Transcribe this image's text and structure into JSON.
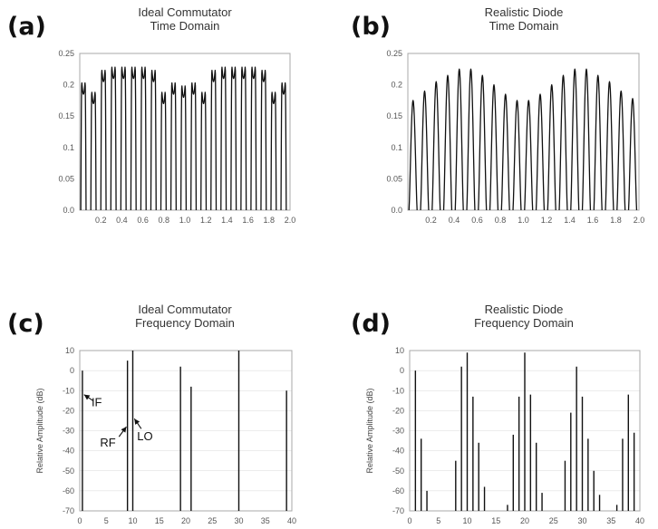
{
  "chart_data": [
    {
      "id": "a",
      "panel_label": "(a)",
      "type": "line",
      "title_lines": [
        "Ideal Commutator",
        "Time Domain"
      ],
      "xlim": [
        0,
        2.0
      ],
      "ylim": [
        0,
        0.25
      ],
      "x_ticks": [
        0.2,
        0.4,
        0.6,
        0.8,
        1.0,
        1.2,
        1.4,
        1.6,
        1.8,
        2.0
      ],
      "x_tick_labels": [
        "0.2",
        "0.4",
        "0.6",
        "0.8",
        "1.0",
        "1.2",
        "1.4",
        "1.6",
        "1.8",
        "2.0"
      ],
      "y_ticks": [
        0,
        0.05,
        0.1,
        0.15,
        0.2,
        0.25
      ],
      "y_tick_labels": [
        "0.0",
        "0.05",
        "0.1",
        "0.15",
        "0.2",
        "0.25"
      ],
      "ylabel": "",
      "pulse_count": 21,
      "pulse_period": 0.0952,
      "pulse_start": 0.01,
      "pulse_width": 0.05,
      "pulse_peaks": [
        0.205,
        0.19,
        0.225,
        0.23,
        0.23,
        0.23,
        0.23,
        0.225,
        0.19,
        0.205,
        0.2,
        0.205,
        0.19,
        0.225,
        0.23,
        0.23,
        0.23,
        0.23,
        0.225,
        0.19,
        0.205
      ],
      "dip_depth": 0.02
    },
    {
      "id": "b",
      "panel_label": "(b)",
      "type": "line",
      "title_lines": [
        "Realistic Diode",
        "Time Domain"
      ],
      "xlim": [
        0,
        2.0
      ],
      "ylim": [
        0,
        0.25
      ],
      "x_ticks": [
        0.2,
        0.4,
        0.6,
        0.8,
        1.0,
        1.2,
        1.4,
        1.6,
        1.8,
        2.0
      ],
      "x_tick_labels": [
        "0.2",
        "0.4",
        "0.6",
        "0.8",
        "1.0",
        "1.2",
        "1.4",
        "1.6",
        "1.8",
        "2.0"
      ],
      "y_ticks": [
        0,
        0.05,
        0.1,
        0.15,
        0.2,
        0.25
      ],
      "y_tick_labels": [
        "0.0",
        "0.05",
        "0.1",
        "0.15",
        "0.2",
        "0.25"
      ],
      "ylabel": "",
      "pulse_count": 20,
      "pulse_period": 0.1,
      "pulse_start": 0.01,
      "pulse_width": 0.07,
      "pulse_peaks": [
        0.175,
        0.19,
        0.205,
        0.215,
        0.225,
        0.225,
        0.215,
        0.2,
        0.185,
        0.175,
        0.175,
        0.185,
        0.2,
        0.215,
        0.225,
        0.225,
        0.215,
        0.205,
        0.19,
        0.178
      ]
    },
    {
      "id": "c",
      "panel_label": "(c)",
      "type": "bar",
      "title_lines": [
        "Ideal Commutator",
        "Frequency Domain"
      ],
      "xlim": [
        0,
        40
      ],
      "ylim": [
        -70,
        10
      ],
      "x_ticks": [
        0,
        5,
        10,
        15,
        20,
        25,
        30,
        35,
        40
      ],
      "x_tick_labels": [
        "0",
        "5",
        "10",
        "15",
        "20",
        "25",
        "30",
        "35",
        "40"
      ],
      "y_ticks": [
        10,
        0,
        -10,
        -20,
        -30,
        -40,
        -50,
        -60,
        -70
      ],
      "y_tick_labels": [
        "10",
        "0",
        "-10",
        "-20",
        "-30",
        "-40",
        "-50",
        "-60",
        "-70"
      ],
      "ylabel": "Relative Amplitude (dB)",
      "x": [
        0.5,
        9,
        10,
        19,
        21,
        30,
        39
      ],
      "values": [
        0,
        5,
        10,
        2,
        -8,
        10,
        -10
      ],
      "annotations": [
        {
          "text": "IF",
          "text_x": 3.2,
          "text_y": -16,
          "arrow_from": [
            2.5,
            -15
          ],
          "arrow_to": [
            0.8,
            -12
          ]
        },
        {
          "text": "RF",
          "text_x": 5.3,
          "text_y": -36,
          "arrow_from": [
            7.4,
            -33
          ],
          "arrow_to": [
            8.8,
            -28
          ]
        },
        {
          "text": "LO",
          "text_x": 12.3,
          "text_y": -33,
          "arrow_from": [
            11.6,
            -29
          ],
          "arrow_to": [
            10.3,
            -24
          ]
        }
      ]
    },
    {
      "id": "d",
      "panel_label": "(d)",
      "type": "bar",
      "title_lines": [
        "Realistic Diode",
        "Frequency Domain"
      ],
      "xlim": [
        0,
        40
      ],
      "ylim": [
        -70,
        10
      ],
      "x_ticks": [
        0,
        5,
        10,
        15,
        20,
        25,
        30,
        35,
        40
      ],
      "x_tick_labels": [
        "0",
        "5",
        "10",
        "15",
        "20",
        "25",
        "30",
        "35",
        "40"
      ],
      "y_ticks": [
        10,
        0,
        -10,
        -20,
        -30,
        -40,
        -50,
        -60,
        -70
      ],
      "y_tick_labels": [
        "10",
        "0",
        "-10",
        "-20",
        "-30",
        "-40",
        "-50",
        "-60",
        "-70"
      ],
      "ylabel": "Relative Amplitude (dB)",
      "x": [
        1,
        2,
        3,
        8,
        9,
        10,
        11,
        12,
        13,
        17,
        18,
        19,
        20,
        21,
        22,
        23,
        27,
        28,
        29,
        30,
        31,
        32,
        33,
        36,
        37,
        38,
        39
      ],
      "values": [
        0,
        -34,
        -60,
        -45,
        2,
        9,
        -13,
        -36,
        -58,
        -67,
        -32,
        -13,
        9,
        -12,
        -36,
        -61,
        -45,
        -21,
        2,
        -13,
        -34,
        -50,
        -62,
        -67,
        -34,
        -12,
        -31
      ]
    }
  ]
}
